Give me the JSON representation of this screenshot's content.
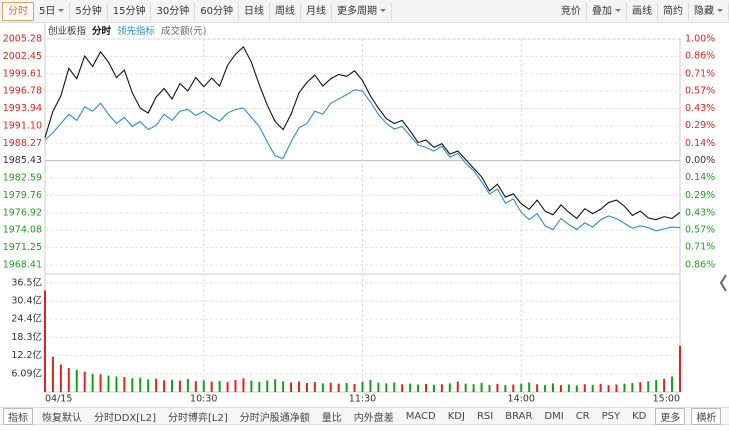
{
  "toolbar": {
    "active": "分时",
    "periods": [
      "5日",
      "5分钟",
      "15分钟",
      "30分钟",
      "60分钟",
      "日线",
      "周线",
      "月线"
    ],
    "more": "更多周期",
    "tools": [
      "竞价",
      "叠加",
      "画线",
      "简约",
      "隐藏"
    ]
  },
  "chart_data": {
    "type": "line",
    "index_name": "创业板指",
    "x": [
      0,
      3,
      6,
      9,
      12,
      15,
      18,
      21,
      24,
      27,
      30,
      33,
      36,
      39,
      42,
      45,
      48,
      51,
      54,
      57,
      60,
      63,
      66,
      69,
      72,
      75,
      78,
      81,
      84,
      87,
      90,
      93,
      96,
      99,
      102,
      105,
      108,
      111,
      114,
      117,
      120,
      123,
      126,
      129,
      132,
      135,
      138,
      141,
      144,
      147,
      150,
      153,
      156,
      159,
      162,
      165,
      168,
      171,
      174,
      177,
      180,
      183,
      186,
      189,
      192,
      195,
      198,
      201,
      204,
      207,
      210,
      213,
      216,
      219,
      222,
      225,
      228,
      231,
      234,
      237,
      240
    ],
    "xlim": [
      0,
      240
    ],
    "xticks": [
      {
        "value": 0,
        "label": "04/15"
      },
      {
        "value": 60,
        "label": "10:30"
      },
      {
        "value": 120,
        "label": "11:30"
      },
      {
        "value": 180,
        "label": "14:00"
      },
      {
        "value": 240,
        "label": "15:00"
      }
    ],
    "ylim": [
      1968.41,
      2005.28
    ],
    "yticks": [
      2005.28,
      2002.45,
      1999.61,
      1996.78,
      1993.94,
      1991.1,
      1988.27,
      1985.43,
      1982.59,
      1979.76,
      1976.92,
      1974.08,
      1971.25,
      1968.41
    ],
    "ytick_labels": [
      "2005.28",
      "2002.45",
      "1999.61",
      "1996.78",
      "1993.94",
      "1991.10",
      "1988.27",
      "1985.43",
      "1982.59",
      "1979.76",
      "1976.92",
      "1974.08",
      "1971.25",
      "1968.41"
    ],
    "y2lim": [
      -0.86,
      1.0
    ],
    "y2ticks": [
      {
        "value": 1.0,
        "label": "1.00%"
      },
      {
        "value": 0.86,
        "label": "0.86%"
      },
      {
        "value": 0.71,
        "label": "0.71%"
      },
      {
        "value": 0.57,
        "label": "0.57%"
      },
      {
        "value": 0.43,
        "label": "0.43%"
      },
      {
        "value": 0.29,
        "label": "0.29%"
      },
      {
        "value": 0.14,
        "label": "0.14%"
      },
      {
        "value": 0,
        "label": "0.00%"
      },
      {
        "value": -0.14,
        "label": "0.14%"
      },
      {
        "value": -0.29,
        "label": "0.29%"
      },
      {
        "value": -0.43,
        "label": "0.43%"
      },
      {
        "value": -0.57,
        "label": "0.57%"
      },
      {
        "value": -0.71,
        "label": "0.71%"
      },
      {
        "value": -0.86,
        "label": "0.86%"
      }
    ],
    "up_color": "#e0231c",
    "down_color": "#1a9e1a",
    "series": [
      {
        "name": "分时",
        "color": "#111111",
        "values": [
          1989.2,
          1993.5,
          1996.0,
          2000.5,
          1998.8,
          2002.5,
          2000.8,
          2003.2,
          2001.5,
          1999.0,
          2000.2,
          1996.5,
          1994.0,
          1993.2,
          1995.8,
          1997.2,
          1995.5,
          1998.0,
          1996.8,
          1999.0,
          1997.5,
          1998.9,
          1997.6,
          2001.0,
          2002.8,
          2004.0,
          2001.5,
          1997.8,
          1994.5,
          1991.8,
          1990.5,
          1993.0,
          1996.5,
          1998.2,
          1999.4,
          1997.6,
          1998.8,
          1999.5,
          1999.2,
          2000.1,
          1998.5,
          1996.0,
          1994.0,
          1992.3,
          1991.5,
          1992.0,
          1990.3,
          1988.4,
          1988.8,
          1987.6,
          1988.2,
          1986.5,
          1987.0,
          1985.6,
          1984.2,
          1982.8,
          1980.5,
          1981.6,
          1979.5,
          1980.0,
          1978.4,
          1977.5,
          1979.0,
          1977.2,
          1976.6,
          1978.2,
          1977.0,
          1976.0,
          1977.6,
          1976.8,
          1977.5,
          1978.6,
          1979.0,
          1978.0,
          1976.5,
          1977.2,
          1976.1,
          1975.8,
          1976.3,
          1976.0,
          1977.0
        ]
      },
      {
        "name": "领先指标",
        "color": "#2b8cd6",
        "values": [
          1988.8,
          1990.0,
          1991.5,
          1993.0,
          1992.0,
          1994.2,
          1993.5,
          1994.8,
          1993.0,
          1991.5,
          1992.5,
          1991.0,
          1991.8,
          1990.5,
          1991.2,
          1993.0,
          1992.0,
          1993.5,
          1993.8,
          1992.8,
          1993.5,
          1992.6,
          1991.9,
          1993.2,
          1993.8,
          1994.0,
          1992.5,
          1991.0,
          1988.5,
          1986.2,
          1985.8,
          1988.5,
          1990.8,
          1991.5,
          1993.5,
          1993.0,
          1994.8,
          1995.5,
          1996.2,
          1997.0,
          1996.8,
          1995.0,
          1993.0,
          1991.5,
          1990.6,
          1991.0,
          1989.5,
          1988.0,
          1987.6,
          1987.0,
          1987.8,
          1986.0,
          1986.6,
          1985.0,
          1983.8,
          1982.0,
          1980.0,
          1980.8,
          1978.5,
          1979.2,
          1977.0,
          1975.8,
          1976.8,
          1974.8,
          1974.2,
          1976.0,
          1975.0,
          1974.2,
          1975.3,
          1974.6,
          1975.8,
          1976.4,
          1976.0,
          1975.2,
          1974.4,
          1974.8,
          1974.5,
          1974.0,
          1974.3,
          1974.6,
          1974.5
        ]
      }
    ],
    "volume": {
      "type": "bar",
      "label": "成交额(元)",
      "ylim": [
        0,
        36.5
      ],
      "yticks": [
        {
          "value": 36.5,
          "label": "36.5亿"
        },
        {
          "value": 30.4,
          "label": "30.4亿"
        },
        {
          "value": 24.4,
          "label": "24.4亿"
        },
        {
          "value": 18.3,
          "label": "18.3亿"
        },
        {
          "value": 12.2,
          "label": "12.2亿"
        },
        {
          "value": 6.09,
          "label": "6.09亿"
        }
      ],
      "values": [
        34.0,
        11.8,
        9.2,
        8.0,
        7.4,
        6.8,
        6.1,
        5.9,
        5.5,
        5.2,
        5.0,
        4.6,
        4.8,
        4.2,
        4.5,
        3.9,
        4.1,
        3.8,
        4.4,
        3.6,
        3.9,
        3.5,
        3.7,
        3.3,
        4.0,
        4.6,
        3.8,
        3.4,
        3.9,
        4.3,
        3.6,
        3.2,
        3.5,
        3.0,
        3.3,
        2.9,
        3.1,
        2.8,
        3.0,
        2.7,
        3.4,
        4.0,
        3.1,
        2.9,
        3.2,
        2.6,
        2.8,
        2.5,
        2.7,
        2.4,
        2.6,
        2.9,
        3.5,
        2.8,
        2.6,
        3.1,
        2.4,
        2.7,
        2.3,
        2.5,
        2.8,
        3.2,
        2.6,
        2.4,
        2.9,
        2.3,
        2.5,
        2.2,
        2.6,
        2.4,
        2.7,
        2.3,
        2.5,
        2.8,
        3.0,
        3.3,
        3.6,
        4.0,
        4.4,
        5.2,
        15.5
      ]
    }
  },
  "indicator_bar": {
    "label": "指标",
    "items": [
      "恢复默认",
      "分时DDX[L2]",
      "分时博弈[L2]",
      "分时沪股通净额",
      "量比",
      "内外盘差",
      "MACD",
      "KDJ",
      "RSI",
      "BRAR",
      "DMI",
      "CR",
      "PSY",
      "KD"
    ],
    "more": "更多",
    "extra": "横析"
  }
}
